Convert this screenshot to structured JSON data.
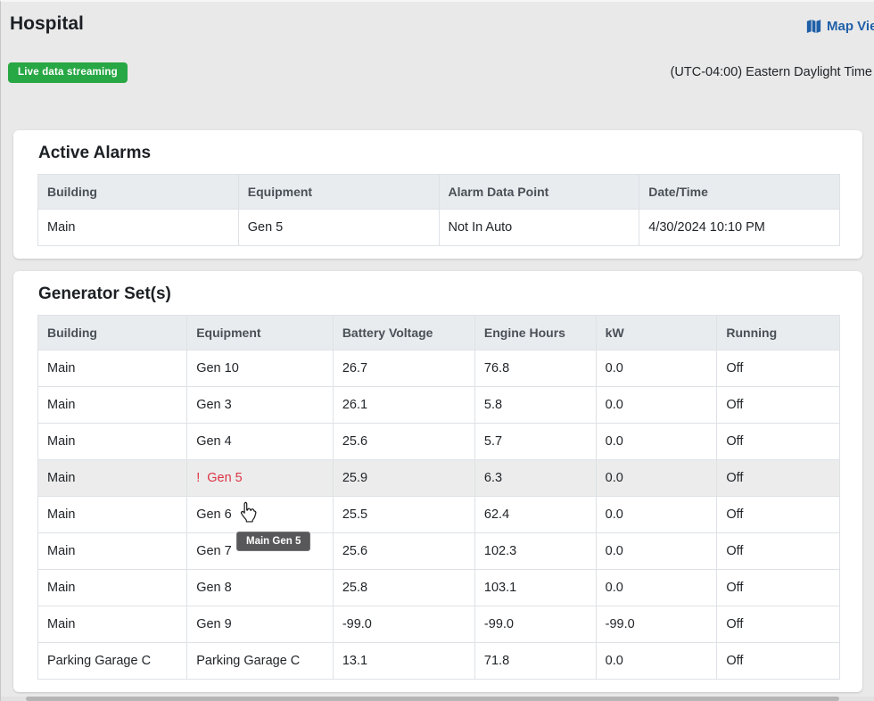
{
  "page": {
    "title": "Hospital",
    "live_badge_label": "Live data streaming",
    "map_view_label": "Map View",
    "timezone_label": "(UTC-04:00) Eastern Daylight Time"
  },
  "colors": {
    "accent_blue": "#1f5fa8",
    "success_green": "#28a745",
    "alarm_red": "#dc3545",
    "table_header_bg": "#e9ecef",
    "page_bg": "#e9e9e9"
  },
  "active_alarms": {
    "title": "Active Alarms",
    "columns": [
      "Building",
      "Equipment",
      "Alarm Data Point",
      "Date/Time"
    ],
    "rows": [
      {
        "building": "Main",
        "equipment": "Gen 5",
        "alarm_data_point": "Not In Auto",
        "datetime": "4/30/2024 10:10 PM"
      }
    ]
  },
  "generators": {
    "title": "Generator Set(s)",
    "columns": [
      "Building",
      "Equipment",
      "Battery Voltage",
      "Engine Hours",
      "kW",
      "Running"
    ],
    "alarm_indicator": "!",
    "rows": [
      {
        "building": "Main",
        "equipment": "Gen 10",
        "battery_voltage": "26.7",
        "engine_hours": "76.8",
        "kw": "0.0",
        "running": "Off",
        "alarm": false,
        "highlighted": false
      },
      {
        "building": "Main",
        "equipment": "Gen 3",
        "battery_voltage": "26.1",
        "engine_hours": "5.8",
        "kw": "0.0",
        "running": "Off",
        "alarm": false,
        "highlighted": false
      },
      {
        "building": "Main",
        "equipment": "Gen 4",
        "battery_voltage": "25.6",
        "engine_hours": "5.7",
        "kw": "0.0",
        "running": "Off",
        "alarm": false,
        "highlighted": false
      },
      {
        "building": "Main",
        "equipment": "Gen 5",
        "battery_voltage": "25.9",
        "engine_hours": "6.3",
        "kw": "0.0",
        "running": "Off",
        "alarm": true,
        "highlighted": true
      },
      {
        "building": "Main",
        "equipment": "Gen 6",
        "battery_voltage": "25.5",
        "engine_hours": "62.4",
        "kw": "0.0",
        "running": "Off",
        "alarm": false,
        "highlighted": false
      },
      {
        "building": "Main",
        "equipment": "Gen 7",
        "battery_voltage": "25.6",
        "engine_hours": "102.3",
        "kw": "0.0",
        "running": "Off",
        "alarm": false,
        "highlighted": false
      },
      {
        "building": "Main",
        "equipment": "Gen 8",
        "battery_voltage": "25.8",
        "engine_hours": "103.1",
        "kw": "0.0",
        "running": "Off",
        "alarm": false,
        "highlighted": false
      },
      {
        "building": "Main",
        "equipment": "Gen 9",
        "battery_voltage": "-99.0",
        "engine_hours": "-99.0",
        "kw": "-99.0",
        "running": "Off",
        "alarm": false,
        "highlighted": false
      },
      {
        "building": "Parking Garage C",
        "equipment": "Parking Garage C",
        "battery_voltage": "13.1",
        "engine_hours": "71.8",
        "kw": "0.0",
        "running": "Off",
        "alarm": false,
        "highlighted": false
      }
    ]
  },
  "tooltip": {
    "text": "Main Gen 5"
  }
}
